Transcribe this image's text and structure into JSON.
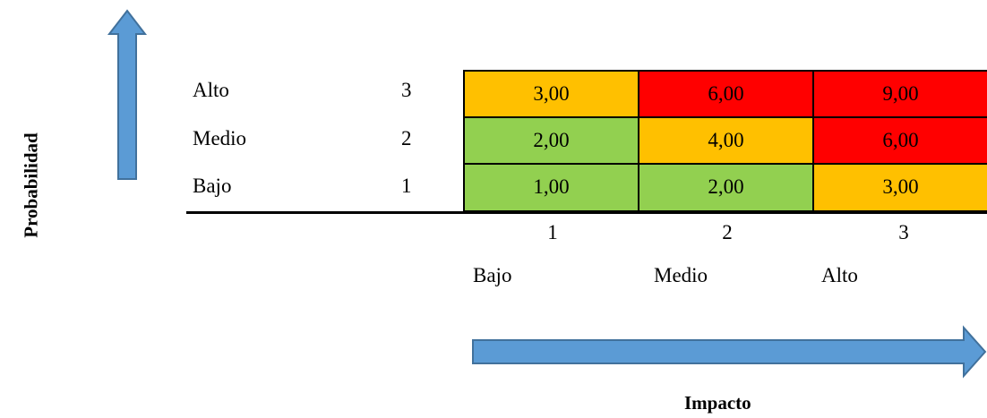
{
  "y_axis_title": "Probabilidad",
  "x_axis_title": "Impacto",
  "rows": [
    {
      "label": "Alto",
      "value": "3",
      "cells": [
        "3,00",
        "6,00",
        "9,00"
      ]
    },
    {
      "label": "Medio",
      "value": "2",
      "cells": [
        "2,00",
        "4,00",
        "6,00"
      ]
    },
    {
      "label": "Bajo",
      "value": "1",
      "cells": [
        "1,00",
        "2,00",
        "3,00"
      ]
    }
  ],
  "columns": [
    {
      "value": "1",
      "label": "Bajo"
    },
    {
      "value": "2",
      "label": "Medio"
    },
    {
      "value": "3",
      "label": "Alto"
    }
  ],
  "colors": {
    "low": "#92d050",
    "medium": "#ffc000",
    "high": "#ff0000",
    "arrow_fill": "#5b9bd5",
    "arrow_stroke": "#41719c"
  },
  "cell_levels": [
    [
      "medium",
      "high",
      "high"
    ],
    [
      "low",
      "medium",
      "high"
    ],
    [
      "low",
      "low",
      "medium"
    ]
  ]
}
